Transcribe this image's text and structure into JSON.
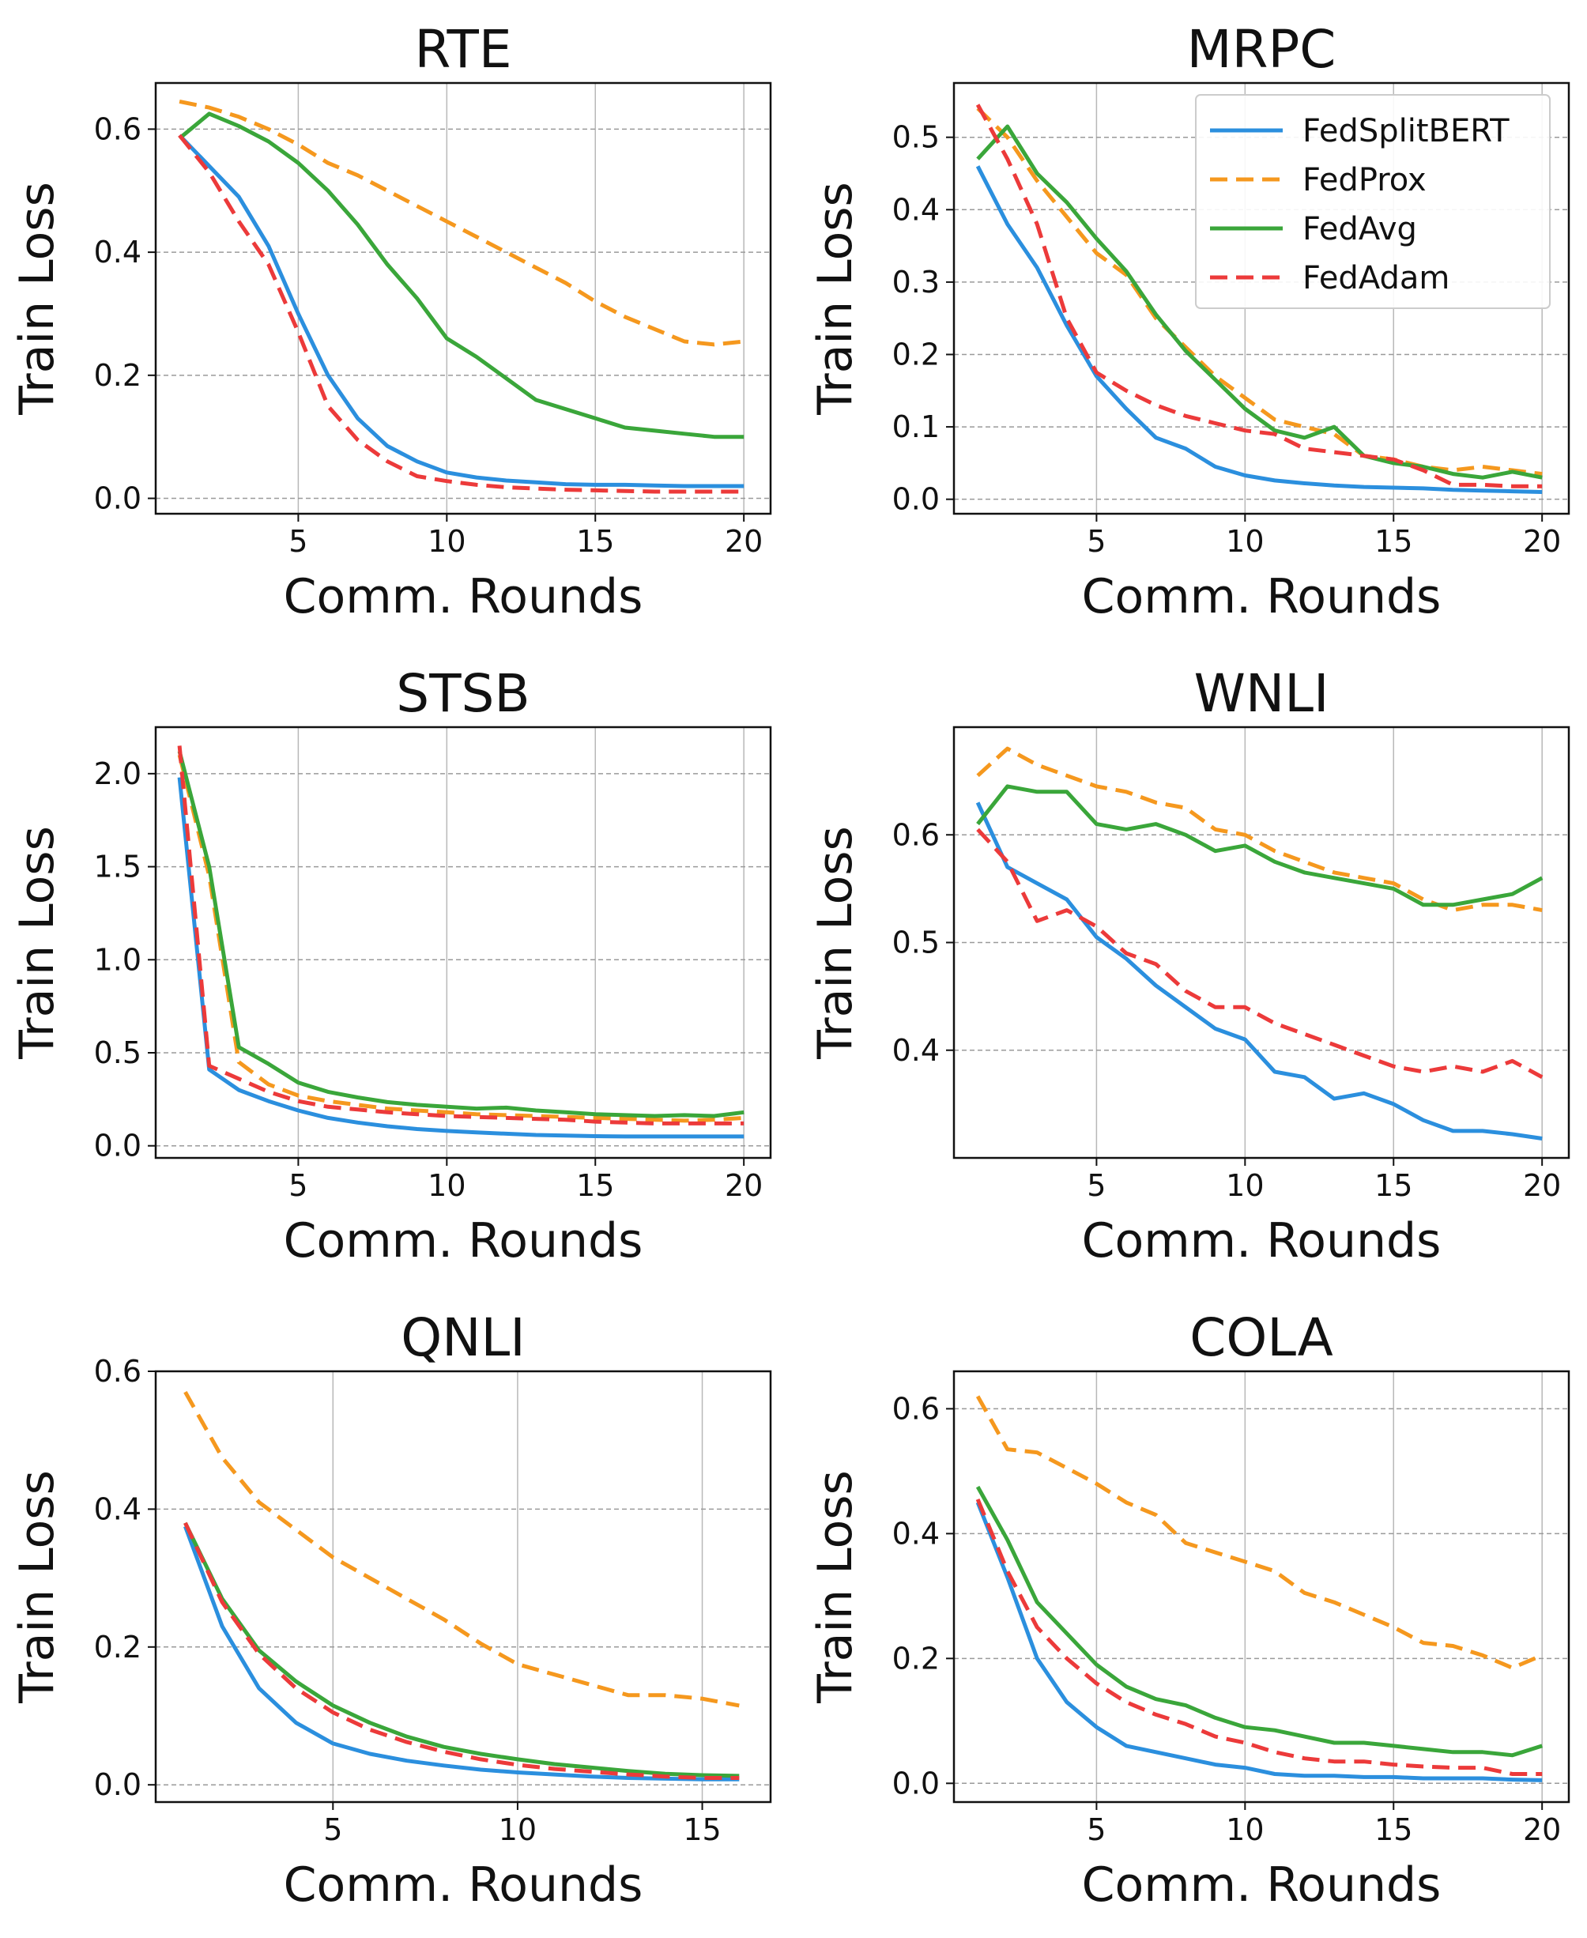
{
  "colors": {
    "FedSplitBERT": "#2b8fde",
    "FedProx": "#f5981e",
    "FedAvg": "#3aa63a",
    "FedAdam": "#ec3a3a"
  },
  "chart_data": [
    {
      "type": "line",
      "title": "RTE",
      "xlabel": "Comm. Rounds",
      "ylabel": "Train Loss",
      "xlim": [
        0.2,
        20.9
      ],
      "ylim": [
        -0.025,
        0.675
      ],
      "xticks": [
        5,
        10,
        15,
        20
      ],
      "yticks": [
        0.0,
        0.2,
        0.4,
        0.6
      ],
      "ytick_labels": [
        "0.0",
        "0.2",
        "0.4",
        "0.6"
      ],
      "grid": true,
      "legend": false,
      "x": [
        1,
        2,
        3,
        4,
        5,
        6,
        7,
        8,
        9,
        10,
        11,
        12,
        13,
        14,
        15,
        16,
        17,
        18,
        19,
        20
      ],
      "series": [
        {
          "name": "FedSplitBERT",
          "style": "solid",
          "values": [
            0.59,
            0.54,
            0.49,
            0.41,
            0.3,
            0.2,
            0.13,
            0.085,
            0.06,
            0.042,
            0.034,
            0.029,
            0.026,
            0.023,
            0.022,
            0.022,
            0.021,
            0.02,
            0.02,
            0.02
          ]
        },
        {
          "name": "FedProx",
          "style": "dashed",
          "values": [
            0.645,
            0.635,
            0.62,
            0.6,
            0.575,
            0.545,
            0.525,
            0.5,
            0.475,
            0.45,
            0.425,
            0.4,
            0.375,
            0.35,
            0.32,
            0.295,
            0.275,
            0.255,
            0.25,
            0.255
          ]
        },
        {
          "name": "FedAvg",
          "style": "solid",
          "values": [
            0.585,
            0.625,
            0.605,
            0.58,
            0.545,
            0.5,
            0.445,
            0.38,
            0.325,
            0.26,
            0.23,
            0.195,
            0.16,
            0.145,
            0.13,
            0.115,
            0.11,
            0.105,
            0.1,
            0.1
          ]
        },
        {
          "name": "FedAdam",
          "style": "dashed",
          "values": [
            0.59,
            0.53,
            0.45,
            0.38,
            0.27,
            0.15,
            0.095,
            0.06,
            0.036,
            0.028,
            0.022,
            0.018,
            0.016,
            0.014,
            0.013,
            0.012,
            0.011,
            0.011,
            0.011,
            0.011
          ]
        }
      ]
    },
    {
      "type": "line",
      "title": "MRPC",
      "xlabel": "Comm. Rounds",
      "ylabel": "Train Loss",
      "xlim": [
        0.2,
        20.9
      ],
      "ylim": [
        -0.02,
        0.575
      ],
      "xticks": [
        5,
        10,
        15,
        20
      ],
      "yticks": [
        0.0,
        0.1,
        0.2,
        0.3,
        0.4,
        0.5
      ],
      "ytick_labels": [
        "0.0",
        "0.1",
        "0.2",
        "0.3",
        "0.4",
        "0.5"
      ],
      "grid": true,
      "legend": true,
      "legend_position": "top-right",
      "x": [
        1,
        2,
        3,
        4,
        5,
        6,
        7,
        8,
        9,
        10,
        11,
        12,
        13,
        14,
        15,
        16,
        17,
        18,
        19,
        20
      ],
      "series": [
        {
          "name": "FedSplitBERT",
          "style": "solid",
          "values": [
            0.46,
            0.38,
            0.32,
            0.24,
            0.17,
            0.125,
            0.085,
            0.07,
            0.045,
            0.033,
            0.026,
            0.022,
            0.019,
            0.017,
            0.016,
            0.015,
            0.013,
            0.012,
            0.011,
            0.01
          ]
        },
        {
          "name": "FedProx",
          "style": "dashed",
          "values": [
            0.54,
            0.5,
            0.44,
            0.39,
            0.34,
            0.31,
            0.25,
            0.21,
            0.17,
            0.14,
            0.11,
            0.1,
            0.09,
            0.06,
            0.055,
            0.045,
            0.04,
            0.045,
            0.04,
            0.035
          ]
        },
        {
          "name": "FedAvg",
          "style": "solid",
          "values": [
            0.47,
            0.515,
            0.45,
            0.41,
            0.36,
            0.315,
            0.255,
            0.205,
            0.165,
            0.125,
            0.095,
            0.085,
            0.1,
            0.06,
            0.05,
            0.045,
            0.035,
            0.03,
            0.038,
            0.03
          ]
        },
        {
          "name": "FedAdam",
          "style": "dashed",
          "values": [
            0.545,
            0.47,
            0.38,
            0.25,
            0.175,
            0.15,
            0.13,
            0.115,
            0.105,
            0.095,
            0.09,
            0.07,
            0.065,
            0.06,
            0.055,
            0.04,
            0.02,
            0.02,
            0.018,
            0.018
          ]
        }
      ]
    },
    {
      "type": "line",
      "title": "STSB",
      "xlabel": "Comm. Rounds",
      "ylabel": "Train Loss",
      "xlim": [
        0.2,
        20.9
      ],
      "ylim": [
        -0.065,
        2.25
      ],
      "xticks": [
        5,
        10,
        15,
        20
      ],
      "yticks": [
        0.0,
        0.5,
        1.0,
        1.5,
        2.0
      ],
      "ytick_labels": [
        "0.0",
        "0.5",
        "1.0",
        "1.5",
        "2.0"
      ],
      "grid": true,
      "legend": false,
      "x": [
        1,
        2,
        3,
        4,
        5,
        6,
        7,
        8,
        9,
        10,
        11,
        12,
        13,
        14,
        15,
        16,
        17,
        18,
        19,
        20
      ],
      "series": [
        {
          "name": "FedSplitBERT",
          "style": "solid",
          "values": [
            1.98,
            0.41,
            0.3,
            0.24,
            0.19,
            0.15,
            0.125,
            0.105,
            0.09,
            0.08,
            0.072,
            0.065,
            0.058,
            0.055,
            0.052,
            0.05,
            0.05,
            0.05,
            0.05,
            0.05
          ]
        },
        {
          "name": "FedProx",
          "style": "dashed",
          "values": [
            2.1,
            1.45,
            0.45,
            0.33,
            0.27,
            0.24,
            0.22,
            0.2,
            0.19,
            0.18,
            0.17,
            0.165,
            0.16,
            0.155,
            0.15,
            0.145,
            0.14,
            0.135,
            0.14,
            0.15
          ]
        },
        {
          "name": "FedAvg",
          "style": "solid",
          "values": [
            2.12,
            1.5,
            0.53,
            0.44,
            0.34,
            0.29,
            0.26,
            0.235,
            0.22,
            0.21,
            0.2,
            0.205,
            0.19,
            0.18,
            0.17,
            0.165,
            0.16,
            0.165,
            0.16,
            0.18
          ]
        },
        {
          "name": "FedAdam",
          "style": "dashed",
          "values": [
            2.15,
            0.43,
            0.36,
            0.29,
            0.24,
            0.21,
            0.195,
            0.18,
            0.17,
            0.16,
            0.155,
            0.15,
            0.145,
            0.14,
            0.13,
            0.125,
            0.12,
            0.12,
            0.12,
            0.12
          ]
        }
      ]
    },
    {
      "type": "line",
      "title": "WNLI",
      "xlabel": "Comm. Rounds",
      "ylabel": "Train Loss",
      "xlim": [
        0.2,
        20.9
      ],
      "ylim": [
        0.3,
        0.7
      ],
      "xticks": [
        5,
        10,
        15,
        20
      ],
      "yticks": [
        0.4,
        0.5,
        0.6
      ],
      "ytick_labels": [
        "0.4",
        "0.5",
        "0.6"
      ],
      "grid": true,
      "legend": false,
      "x": [
        1,
        2,
        3,
        4,
        5,
        6,
        7,
        8,
        9,
        10,
        11,
        12,
        13,
        14,
        15,
        16,
        17,
        18,
        19,
        20
      ],
      "series": [
        {
          "name": "FedSplitBERT",
          "style": "solid",
          "values": [
            0.63,
            0.57,
            0.555,
            0.54,
            0.505,
            0.485,
            0.46,
            0.44,
            0.42,
            0.41,
            0.38,
            0.375,
            0.355,
            0.36,
            0.35,
            0.335,
            0.325,
            0.325,
            0.322,
            0.318
          ]
        },
        {
          "name": "FedProx",
          "style": "dashed",
          "values": [
            0.655,
            0.68,
            0.665,
            0.655,
            0.645,
            0.64,
            0.63,
            0.625,
            0.605,
            0.6,
            0.585,
            0.575,
            0.565,
            0.56,
            0.555,
            0.54,
            0.53,
            0.535,
            0.535,
            0.53
          ]
        },
        {
          "name": "FedAvg",
          "style": "solid",
          "values": [
            0.61,
            0.645,
            0.64,
            0.64,
            0.61,
            0.605,
            0.61,
            0.6,
            0.585,
            0.59,
            0.575,
            0.565,
            0.56,
            0.555,
            0.55,
            0.535,
            0.535,
            0.54,
            0.545,
            0.56
          ]
        },
        {
          "name": "FedAdam",
          "style": "dashed",
          "values": [
            0.605,
            0.575,
            0.52,
            0.53,
            0.515,
            0.49,
            0.48,
            0.455,
            0.44,
            0.44,
            0.425,
            0.415,
            0.405,
            0.395,
            0.385,
            0.38,
            0.385,
            0.38,
            0.39,
            0.375
          ]
        }
      ]
    },
    {
      "type": "line",
      "title": "QNLI",
      "xlabel": "Comm. Rounds",
      "ylabel": "Train Loss",
      "xlim": [
        0.2,
        16.85
      ],
      "ylim": [
        -0.025,
        0.6
      ],
      "xticks": [
        5,
        10,
        15
      ],
      "yticks": [
        0.0,
        0.2,
        0.4,
        0.6
      ],
      "ytick_labels": [
        "0.0",
        "0.2",
        "0.4",
        "0.6"
      ],
      "grid": true,
      "legend": false,
      "x": [
        1,
        2,
        3,
        4,
        5,
        6,
        7,
        8,
        9,
        10,
        11,
        12,
        13,
        14,
        15,
        16
      ],
      "series": [
        {
          "name": "FedSplitBERT",
          "style": "solid",
          "values": [
            0.375,
            0.23,
            0.14,
            0.09,
            0.06,
            0.045,
            0.035,
            0.028,
            0.022,
            0.018,
            0.015,
            0.012,
            0.01,
            0.009,
            0.008,
            0.008
          ]
        },
        {
          "name": "FedProx",
          "style": "dashed",
          "values": [
            0.57,
            0.475,
            0.41,
            0.37,
            0.33,
            0.3,
            0.27,
            0.24,
            0.205,
            0.175,
            0.16,
            0.145,
            0.13,
            0.13,
            0.125,
            0.115
          ]
        },
        {
          "name": "FedAvg",
          "style": "solid",
          "values": [
            0.38,
            0.27,
            0.195,
            0.15,
            0.115,
            0.09,
            0.07,
            0.055,
            0.045,
            0.037,
            0.03,
            0.025,
            0.02,
            0.016,
            0.014,
            0.013
          ]
        },
        {
          "name": "FedAdam",
          "style": "dashed",
          "values": [
            0.38,
            0.265,
            0.19,
            0.14,
            0.105,
            0.08,
            0.062,
            0.048,
            0.037,
            0.029,
            0.023,
            0.019,
            0.015,
            0.012,
            0.01,
            0.01
          ]
        }
      ]
    },
    {
      "type": "line",
      "title": "COLA",
      "xlabel": "Comm. Rounds",
      "ylabel": "Train Loss",
      "xlim": [
        0.2,
        20.9
      ],
      "ylim": [
        -0.03,
        0.66
      ],
      "xticks": [
        5,
        10,
        15,
        20
      ],
      "yticks": [
        0.0,
        0.2,
        0.4,
        0.6
      ],
      "ytick_labels": [
        "0.0",
        "0.2",
        "0.4",
        "0.6"
      ],
      "grid": true,
      "legend": false,
      "x": [
        1,
        2,
        3,
        4,
        5,
        6,
        7,
        8,
        9,
        10,
        11,
        12,
        13,
        14,
        15,
        16,
        17,
        18,
        19,
        20
      ],
      "series": [
        {
          "name": "FedSplitBERT",
          "style": "solid",
          "values": [
            0.45,
            0.33,
            0.2,
            0.13,
            0.09,
            0.06,
            0.05,
            0.04,
            0.03,
            0.025,
            0.015,
            0.012,
            0.012,
            0.01,
            0.01,
            0.008,
            0.008,
            0.008,
            0.006,
            0.005
          ]
        },
        {
          "name": "FedProx",
          "style": "dashed",
          "values": [
            0.62,
            0.535,
            0.53,
            0.505,
            0.48,
            0.45,
            0.43,
            0.385,
            0.37,
            0.355,
            0.34,
            0.305,
            0.29,
            0.27,
            0.25,
            0.225,
            0.22,
            0.205,
            0.185,
            0.205
          ]
        },
        {
          "name": "FedAvg",
          "style": "solid",
          "values": [
            0.475,
            0.39,
            0.29,
            0.24,
            0.19,
            0.155,
            0.135,
            0.125,
            0.105,
            0.09,
            0.085,
            0.075,
            0.065,
            0.065,
            0.06,
            0.055,
            0.05,
            0.05,
            0.045,
            0.06
          ]
        },
        {
          "name": "FedAdam",
          "style": "dashed",
          "values": [
            0.455,
            0.34,
            0.25,
            0.2,
            0.16,
            0.13,
            0.11,
            0.095,
            0.075,
            0.065,
            0.05,
            0.04,
            0.035,
            0.035,
            0.03,
            0.027,
            0.025,
            0.025,
            0.015,
            0.015
          ]
        }
      ]
    }
  ]
}
